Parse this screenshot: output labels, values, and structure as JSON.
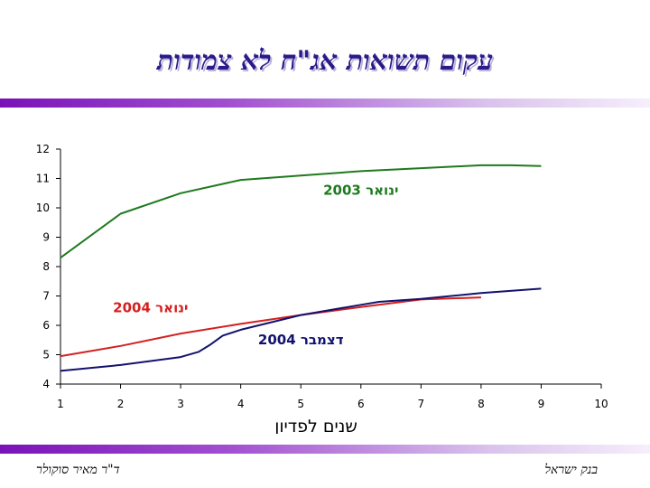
{
  "title": "עקום תשואות אג\"ח לא צמודות",
  "footer": {
    "left": "ד\"ר מאיר סוקולר",
    "right": "בנק ישראל"
  },
  "colors": {
    "green": "#1e7a1e",
    "red": "#d42020",
    "navy": "#12126e",
    "band": "#8a2bc2",
    "title": "#2a1a8a"
  },
  "chart_data": {
    "type": "line",
    "xlabel": "שנים לפדיון",
    "ylabel": "",
    "xlim": [
      1,
      10
    ],
    "ylim": [
      4,
      12
    ],
    "xticks": [
      1,
      2,
      3,
      4,
      5,
      6,
      7,
      8,
      9,
      10
    ],
    "yticks": [
      4,
      5,
      6,
      7,
      8,
      9,
      10,
      11,
      12
    ],
    "grid": false,
    "series": [
      {
        "name": "ינואר 2003",
        "color": "#1e7a1e",
        "x": [
          1,
          2,
          3,
          4,
          5,
          6,
          7,
          8,
          8.5,
          9
        ],
        "y": [
          8.3,
          9.8,
          10.5,
          10.95,
          11.1,
          11.25,
          11.35,
          11.45,
          11.45,
          11.42
        ]
      },
      {
        "name": "ינואר 2004",
        "color": "#d42020",
        "x": [
          1,
          2,
          3,
          4,
          5,
          6,
          7,
          8
        ],
        "y": [
          4.95,
          5.3,
          5.72,
          6.05,
          6.35,
          6.62,
          6.88,
          6.95
        ]
      },
      {
        "name": "דצמבר 2004",
        "color": "#12126e",
        "x": [
          1,
          2,
          3,
          3.3,
          3.5,
          3.7,
          4,
          5,
          6,
          6.3,
          7,
          8,
          9
        ],
        "y": [
          4.45,
          4.65,
          4.92,
          5.1,
          5.35,
          5.65,
          5.85,
          6.35,
          6.7,
          6.8,
          6.9,
          7.1,
          7.25
        ]
      }
    ],
    "annotations": [
      {
        "text": "ינואר 2003",
        "series": 0,
        "x": 6.0,
        "y": 10.45
      },
      {
        "text": "ינואר 2004",
        "series": 1,
        "x": 2.5,
        "y": 6.45
      },
      {
        "text": "דצמבר 2004",
        "series": 2,
        "x": 5.0,
        "y": 5.35
      }
    ]
  }
}
